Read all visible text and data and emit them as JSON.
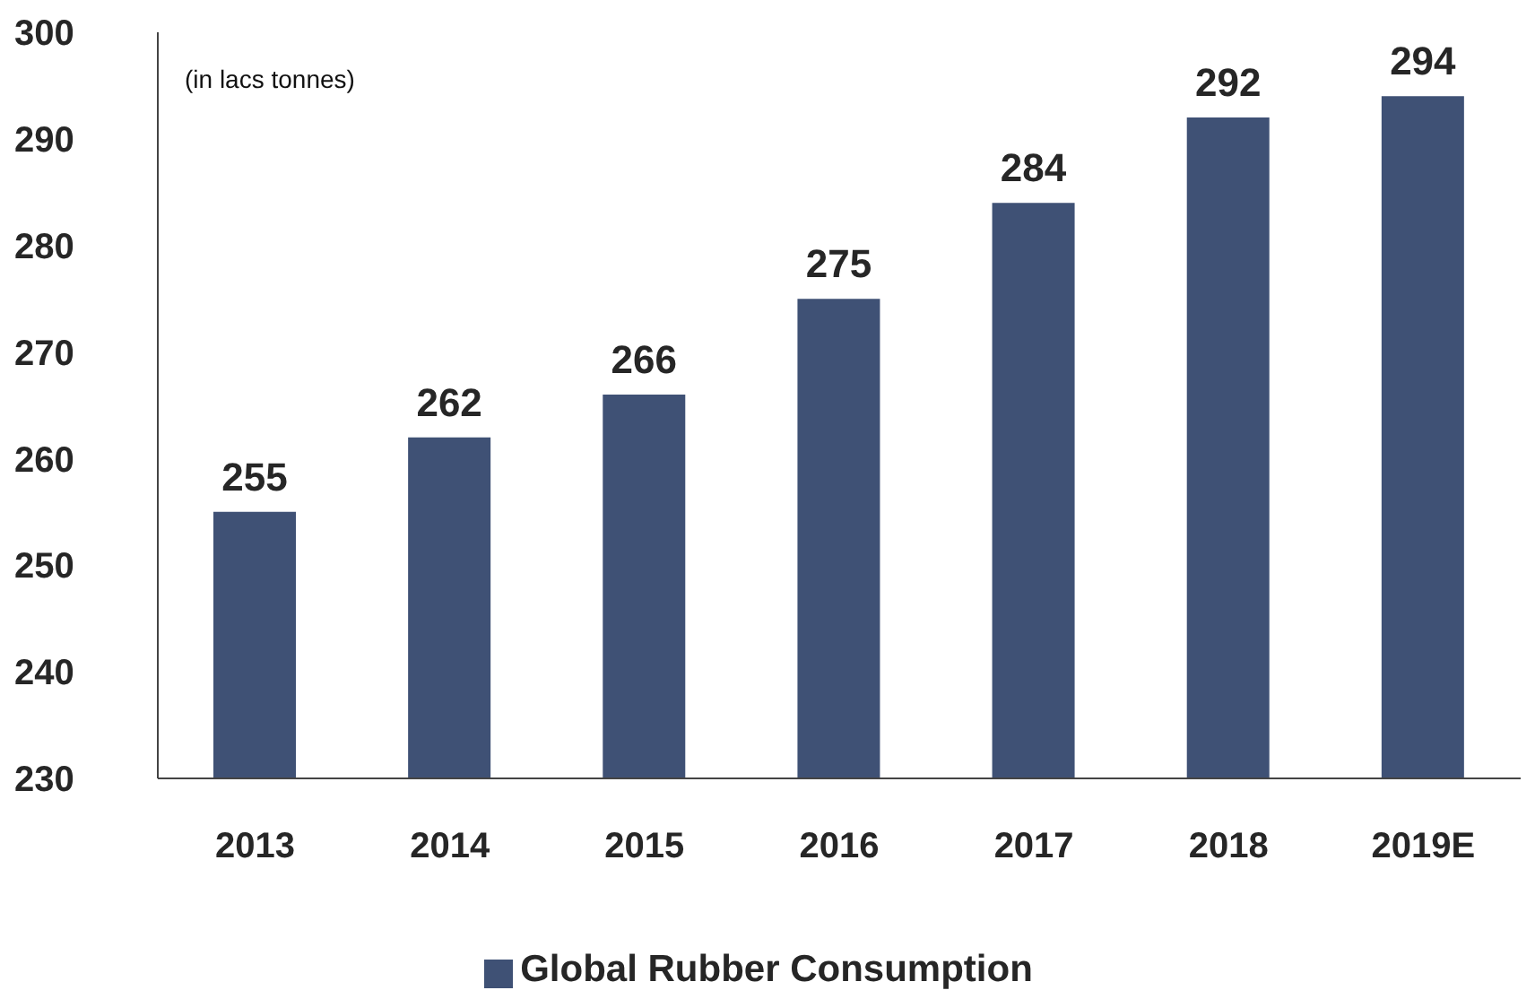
{
  "chart_data": {
    "type": "bar",
    "categories": [
      "2013",
      "2014",
      "2015",
      "2016",
      "2017",
      "2018",
      "2019E"
    ],
    "series": [
      {
        "name": "Global Rubber Consumption",
        "color": "#3f5175",
        "values": [
          255,
          262,
          266,
          275,
          284,
          292,
          294
        ]
      }
    ],
    "ylim": [
      230,
      300
    ],
    "yticks": [
      230,
      240,
      250,
      260,
      270,
      280,
      290,
      300
    ],
    "annotations": [
      "(in lacs tonnes)"
    ],
    "data_labels": true,
    "grid": false,
    "legend": "bottom"
  }
}
